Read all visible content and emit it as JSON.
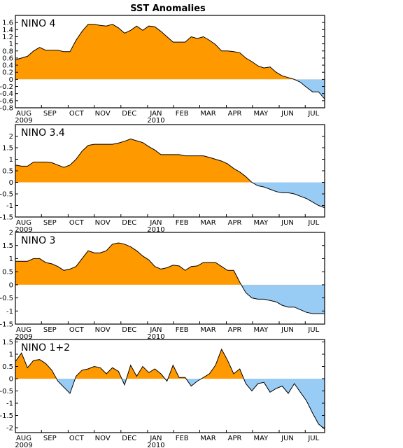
{
  "title": "SST Anomalies",
  "colors": {
    "positive": "#ff9900",
    "negative": "#99ccf4",
    "line": "#000000"
  },
  "x_month_labels": [
    "AUG",
    "SEP",
    "OCT",
    "NOV",
    "DEC",
    "JAN",
    "FEB",
    "MAR",
    "APR",
    "MAY",
    "JUN",
    "JUL"
  ],
  "x_year_labels": [
    {
      "under": "AUG",
      "text": "2009"
    },
    {
      "under": "JAN",
      "text": "2010"
    }
  ],
  "chart_data": [
    {
      "type": "area",
      "label": "NINO 4",
      "ylim": [
        -0.8,
        1.8
      ],
      "yticks": [
        "1.6",
        "1.4",
        "1.2",
        "1",
        "0.8",
        "0.6",
        "0.4",
        "0.2",
        "0",
        "-0.2",
        "-0.4",
        "-0.6",
        "-0.8"
      ],
      "ytick_values": [
        1.6,
        1.4,
        1.2,
        1.0,
        0.8,
        0.6,
        0.4,
        0.2,
        0,
        -0.2,
        -0.4,
        -0.6,
        -0.8
      ],
      "x_week": [
        0,
        1,
        2,
        3,
        4,
        5,
        6,
        7,
        8,
        9,
        10,
        11,
        12,
        13,
        14,
        15,
        16,
        17,
        18,
        19,
        20,
        21,
        22,
        23,
        24,
        25,
        26,
        27,
        28,
        29,
        30,
        31,
        32,
        33,
        34,
        35,
        36,
        37,
        38,
        39,
        40,
        41,
        42,
        43,
        44,
        45,
        46,
        47,
        48,
        49,
        50,
        51
      ],
      "values": [
        0.55,
        0.6,
        0.65,
        0.8,
        0.9,
        0.82,
        0.82,
        0.82,
        0.78,
        0.78,
        1.1,
        1.35,
        1.55,
        1.55,
        1.52,
        1.5,
        1.55,
        1.45,
        1.3,
        1.38,
        1.5,
        1.38,
        1.5,
        1.48,
        1.35,
        1.2,
        1.05,
        1.05,
        1.05,
        1.2,
        1.15,
        1.2,
        1.1,
        0.98,
        0.8,
        0.8,
        0.78,
        0.75,
        0.6,
        0.5,
        0.38,
        0.32,
        0.35,
        0.2,
        0.1,
        0.05,
        0.0,
        -0.08,
        -0.22,
        -0.35,
        -0.35,
        -0.55
      ]
    },
    {
      "type": "area",
      "label": "NINO 3.4",
      "ylim": [
        -1.5,
        2.5
      ],
      "yticks": [
        "2",
        "1.5",
        "1",
        "0.5",
        "0",
        "-0.5",
        "-1",
        "-1.5"
      ],
      "ytick_values": [
        2,
        1.5,
        1,
        0.5,
        0,
        -0.5,
        -1,
        -1.5
      ],
      "x_week": [
        0,
        1,
        2,
        3,
        4,
        5,
        6,
        7,
        8,
        9,
        10,
        11,
        12,
        13,
        14,
        15,
        16,
        17,
        18,
        19,
        20,
        21,
        22,
        23,
        24,
        25,
        26,
        27,
        28,
        29,
        30,
        31,
        32,
        33,
        34,
        35,
        36,
        37,
        38,
        39,
        40,
        41,
        42,
        43,
        44,
        45,
        46,
        47,
        48,
        49,
        50,
        51
      ],
      "values": [
        0.75,
        0.7,
        0.7,
        0.88,
        0.88,
        0.88,
        0.85,
        0.75,
        0.65,
        0.75,
        1.0,
        1.35,
        1.6,
        1.65,
        1.65,
        1.65,
        1.65,
        1.7,
        1.78,
        1.88,
        1.8,
        1.72,
        1.55,
        1.4,
        1.2,
        1.2,
        1.2,
        1.2,
        1.15,
        1.15,
        1.15,
        1.15,
        1.08,
        1.0,
        0.92,
        0.8,
        0.6,
        0.45,
        0.25,
        0.0,
        -0.15,
        -0.2,
        -0.3,
        -0.4,
        -0.45,
        -0.45,
        -0.5,
        -0.6,
        -0.7,
        -0.85,
        -1.0,
        -1.1
      ]
    },
    {
      "type": "area",
      "label": "NINO 3",
      "ylim": [
        -1.5,
        2.0
      ],
      "yticks": [
        "2",
        "1.5",
        "1",
        "0.5",
        "0",
        "-0.5",
        "-1",
        "-1.5"
      ],
      "ytick_values": [
        2,
        1.5,
        1,
        0.5,
        0,
        -0.5,
        -1,
        -1.5
      ],
      "x_week": [
        0,
        1,
        2,
        3,
        4,
        5,
        6,
        7,
        8,
        9,
        10,
        11,
        12,
        13,
        14,
        15,
        16,
        17,
        18,
        19,
        20,
        21,
        22,
        23,
        24,
        25,
        26,
        27,
        28,
        29,
        30,
        31,
        32,
        33,
        34,
        35,
        36,
        37,
        38,
        39,
        40,
        41,
        42,
        43,
        44,
        45,
        46,
        47,
        48,
        49,
        50,
        51
      ],
      "values": [
        0.9,
        0.9,
        0.9,
        1.0,
        1.0,
        0.85,
        0.8,
        0.7,
        0.55,
        0.6,
        0.7,
        1.0,
        1.3,
        1.22,
        1.22,
        1.3,
        1.55,
        1.6,
        1.55,
        1.45,
        1.3,
        1.1,
        0.95,
        0.7,
        0.6,
        0.65,
        0.75,
        0.72,
        0.55,
        0.7,
        0.72,
        0.85,
        0.85,
        0.85,
        0.7,
        0.55,
        0.55,
        0.1,
        -0.3,
        -0.5,
        -0.55,
        -0.55,
        -0.6,
        -0.65,
        -0.78,
        -0.85,
        -0.85,
        -0.95,
        -1.05,
        -1.1,
        -1.1,
        -1.1
      ]
    },
    {
      "type": "area",
      "label": "NINO 1+2",
      "ylim": [
        -2.2,
        1.6
      ],
      "yticks": [
        "1.5",
        "1",
        "0.5",
        "0",
        "-0.5",
        "-1",
        "-1.5",
        "-2"
      ],
      "ytick_values": [
        1.5,
        1,
        0.5,
        0,
        -0.5,
        -1,
        -1.5,
        -2
      ],
      "x_week": [
        0,
        1,
        2,
        3,
        4,
        5,
        6,
        7,
        8,
        9,
        10,
        11,
        12,
        13,
        14,
        15,
        16,
        17,
        18,
        19,
        20,
        21,
        22,
        23,
        24,
        25,
        26,
        27,
        28,
        29,
        30,
        31,
        32,
        33,
        34,
        35,
        36,
        37,
        38,
        39,
        40,
        41,
        42,
        43,
        44,
        45,
        46,
        47,
        48,
        49,
        50,
        51
      ],
      "values": [
        0.7,
        1.05,
        0.45,
        0.75,
        0.78,
        0.62,
        0.35,
        -0.1,
        -0.35,
        -0.6,
        0.1,
        0.35,
        0.4,
        0.5,
        0.45,
        0.2,
        0.45,
        0.3,
        -0.25,
        0.55,
        0.1,
        0.5,
        0.25,
        0.4,
        0.2,
        -0.1,
        0.55,
        0.05,
        0.05,
        -0.3,
        -0.1,
        0.05,
        0.2,
        0.55,
        1.2,
        0.75,
        0.2,
        0.4,
        -0.2,
        -0.5,
        -0.2,
        -0.15,
        -0.55,
        -0.4,
        -0.3,
        -0.6,
        -0.2,
        -0.55,
        -0.9,
        -1.4,
        -1.85,
        -2.05
      ]
    }
  ]
}
